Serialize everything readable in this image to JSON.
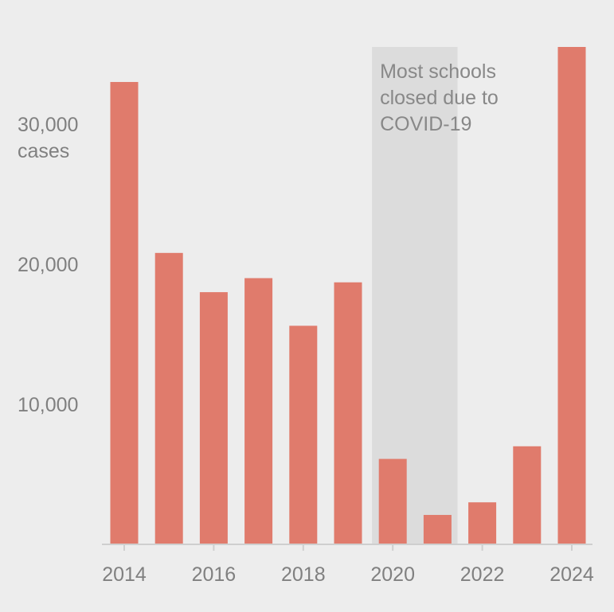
{
  "chart_data": {
    "type": "bar",
    "title": "",
    "xlabel": "",
    "ylabel": "",
    "categories": [
      "2014",
      "2015",
      "2016",
      "2017",
      "2018",
      "2019",
      "2020",
      "2021",
      "2022",
      "2023",
      "2024"
    ],
    "values": [
      33000,
      20800,
      18000,
      19000,
      15600,
      18700,
      6100,
      2100,
      3000,
      7000,
      35500
    ],
    "ylim": [
      0,
      35500
    ],
    "y_ticks": [
      {
        "value": 30000,
        "label": "30,000",
        "sublabel": "cases"
      },
      {
        "value": 20000,
        "label": "20,000"
      },
      {
        "value": 10000,
        "label": "10,000"
      }
    ],
    "x_ticks": [
      "2014",
      "2016",
      "2018",
      "2020",
      "2022",
      "2024"
    ],
    "highlight_range": [
      "2020",
      "2021"
    ],
    "annotation": [
      "Most schools",
      "closed due to",
      "COVID-19"
    ],
    "grid": false,
    "colors": {
      "bar": "#e07b6c",
      "highlight": "#dcdcdc",
      "axis": "#cfcfcf",
      "text": "#808080",
      "background": "#ededed"
    }
  }
}
